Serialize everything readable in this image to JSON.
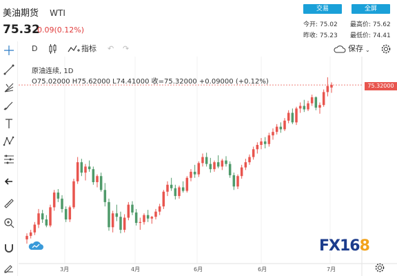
{
  "header": {
    "title": "美油期货",
    "symbol": "WTI",
    "price": "75.32",
    "change": "0.09(0.12%)",
    "trade_label": "交易",
    "fullscreen_label": "全屏",
    "stats": {
      "open_label": "今开:",
      "open": "75.02",
      "high_label": "最高价:",
      "high": "75.62",
      "prev_label": "昨收:",
      "prev": "75.23",
      "low_label": "最低价:",
      "low": "74.41"
    }
  },
  "toolbar": {
    "interval": "D",
    "indicators_label": "指标",
    "save_label": "保存"
  },
  "legend": {
    "name": "原油连续",
    "interval": "1D",
    "ohlc": "O75.02000  H75.62000  L74.41000  收=75.32000  +0.09000 (+0.12%)"
  },
  "price_tag": "75.32000",
  "x_axis_labels": [
    "3月",
    "4月",
    "6月",
    "6月",
    "7月"
  ],
  "logo": {
    "main": "FX16",
    "accent": "8"
  },
  "colors": {
    "up": "#e8554e",
    "down": "#4f9a6a",
    "accent": "#1aa0d8"
  },
  "chart_data": {
    "type": "candlestick",
    "x_ticks": [
      "3月",
      "4月",
      "6月",
      "6月",
      "7月"
    ],
    "last_close": 75.32,
    "candles": [
      [
        57.5,
        58.2,
        57.0,
        57.9
      ],
      [
        57.9,
        58.6,
        57.6,
        58.3
      ],
      [
        58.3,
        59.5,
        58.0,
        59.2
      ],
      [
        59.2,
        61.0,
        58.8,
        60.5
      ],
      [
        60.5,
        60.9,
        59.4,
        59.8
      ],
      [
        59.8,
        60.3,
        58.9,
        59.1
      ],
      [
        59.1,
        61.5,
        58.9,
        61.2
      ],
      [
        61.2,
        63.2,
        60.8,
        62.9
      ],
      [
        62.9,
        63.3,
        61.8,
        62.2
      ],
      [
        62.2,
        62.6,
        60.6,
        61.0
      ],
      [
        61.0,
        61.3,
        59.5,
        59.8
      ],
      [
        59.8,
        61.4,
        59.5,
        61.2
      ],
      [
        61.2,
        64.5,
        61.0,
        64.2
      ],
      [
        64.2,
        67.0,
        63.9,
        66.4
      ],
      [
        66.4,
        66.8,
        64.8,
        65.2
      ],
      [
        65.2,
        66.2,
        64.3,
        65.9
      ],
      [
        65.9,
        66.6,
        65.3,
        65.6
      ],
      [
        65.6,
        65.9,
        63.8,
        64.1
      ],
      [
        64.1,
        65.0,
        63.5,
        64.8
      ],
      [
        64.8,
        65.2,
        63.0,
        63.2
      ],
      [
        63.2,
        64.0,
        61.3,
        61.8
      ],
      [
        61.8,
        62.2,
        58.5,
        58.9
      ],
      [
        58.9,
        60.8,
        58.3,
        60.5
      ],
      [
        60.5,
        61.5,
        59.6,
        60.1
      ],
      [
        60.1,
        60.7,
        58.2,
        58.6
      ],
      [
        58.6,
        60.4,
        58.3,
        60.0
      ],
      [
        60.0,
        61.8,
        59.7,
        61.5
      ],
      [
        61.5,
        61.9,
        60.3,
        60.6
      ],
      [
        60.6,
        61.0,
        59.1,
        59.4
      ],
      [
        59.4,
        60.0,
        58.6,
        59.5
      ],
      [
        59.5,
        60.5,
        59.2,
        60.3
      ],
      [
        60.3,
        60.9,
        59.5,
        59.9
      ],
      [
        59.9,
        60.2,
        59.3,
        60.1
      ],
      [
        60.1,
        61.0,
        59.8,
        60.7
      ],
      [
        60.7,
        61.6,
        60.3,
        61.3
      ],
      [
        61.3,
        63.2,
        61.0,
        63.0
      ],
      [
        63.0,
        64.2,
        62.5,
        63.8
      ],
      [
        63.8,
        64.6,
        63.1,
        63.4
      ],
      [
        63.4,
        63.8,
        62.1,
        62.5
      ],
      [
        62.5,
        63.7,
        62.2,
        63.5
      ],
      [
        63.5,
        64.2,
        62.9,
        63.1
      ],
      [
        63.1,
        64.8,
        62.9,
        64.6
      ],
      [
        64.6,
        65.6,
        64.2,
        65.3
      ],
      [
        65.3,
        66.1,
        64.6,
        65.0
      ],
      [
        65.0,
        66.5,
        64.7,
        66.3
      ],
      [
        66.3,
        67.4,
        65.9,
        67.0
      ],
      [
        67.0,
        67.5,
        65.9,
        66.2
      ],
      [
        66.2,
        66.9,
        65.2,
        65.6
      ],
      [
        65.6,
        66.6,
        65.3,
        66.4
      ],
      [
        66.4,
        67.2,
        65.7,
        65.9
      ],
      [
        65.9,
        66.8,
        65.5,
        66.6
      ],
      [
        66.6,
        67.1,
        65.9,
        66.2
      ],
      [
        66.2,
        66.5,
        64.6,
        64.9
      ],
      [
        64.9,
        65.2,
        63.2,
        63.6
      ],
      [
        63.6,
        65.0,
        63.3,
        64.8
      ],
      [
        64.8,
        66.1,
        64.5,
        65.8
      ],
      [
        65.8,
        66.8,
        65.5,
        66.4
      ],
      [
        66.4,
        67.3,
        66.1,
        67.0
      ],
      [
        67.0,
        68.2,
        66.7,
        67.9
      ],
      [
        67.9,
        68.7,
        67.4,
        68.4
      ],
      [
        68.4,
        69.2,
        67.9,
        68.8
      ],
      [
        68.8,
        69.3,
        68.0,
        68.5
      ],
      [
        68.5,
        69.8,
        68.2,
        69.5
      ],
      [
        69.5,
        70.3,
        69.0,
        69.9
      ],
      [
        69.9,
        70.8,
        69.6,
        70.5
      ],
      [
        70.5,
        71.0,
        69.8,
        70.2
      ],
      [
        70.2,
        71.5,
        70.0,
        71.2
      ],
      [
        71.2,
        72.4,
        70.9,
        72.1
      ],
      [
        72.1,
        72.6,
        70.8,
        71.0
      ],
      [
        71.0,
        72.8,
        70.7,
        72.6
      ],
      [
        72.6,
        73.3,
        72.1,
        72.9
      ],
      [
        72.9,
        73.6,
        72.2,
        72.5
      ],
      [
        72.5,
        73.5,
        72.3,
        73.2
      ],
      [
        73.2,
        74.2,
        72.9,
        73.9
      ],
      [
        73.9,
        74.0,
        72.4,
        72.7
      ],
      [
        72.7,
        73.3,
        72.0,
        73.0
      ],
      [
        73.0,
        74.8,
        72.8,
        74.5
      ],
      [
        74.5,
        76.2,
        74.0,
        75.2
      ],
      [
        75.02,
        75.62,
        74.41,
        75.32
      ]
    ],
    "y_range": [
      55.5,
      77.0
    ]
  }
}
